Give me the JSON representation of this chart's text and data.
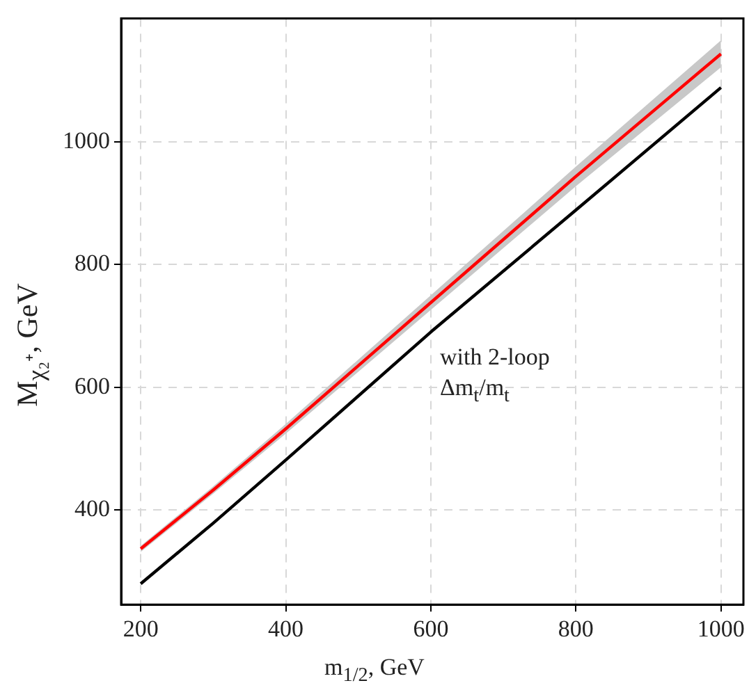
{
  "chart_data": {
    "type": "line",
    "xlabel": "m$_{1/2}$, GeV",
    "ylabel": "M$_{χ₂⁺}$, GeV",
    "xlim": [
      173,
      1031
    ],
    "ylim": [
      245,
      1202
    ],
    "xticks": [
      200,
      400,
      600,
      800,
      1000
    ],
    "yticks": [
      400,
      600,
      800,
      1000
    ],
    "grid": true,
    "legend": false,
    "marker": "none",
    "line_style": "solid",
    "annotations": [
      "with 2-loop\nΔm$_{t}$/m$_{t}$"
    ],
    "series": [
      {
        "color": "#ff0000",
        "x": [
          200,
          300,
          400,
          600,
          800,
          1000
        ],
        "values": [
          336,
          432,
          532,
          738,
          944,
          1144
        ],
        "lower": [
          331,
          426,
          524,
          726,
          928,
          1122
        ],
        "upper": [
          341,
          438,
          540,
          750,
          960,
          1166
        ]
      },
      {
        "color": "#000000",
        "x": [
          200,
          300,
          400,
          600,
          800,
          1000
        ],
        "values": [
          279,
          378,
          481,
          690,
          889,
          1089
        ]
      }
    ]
  }
}
